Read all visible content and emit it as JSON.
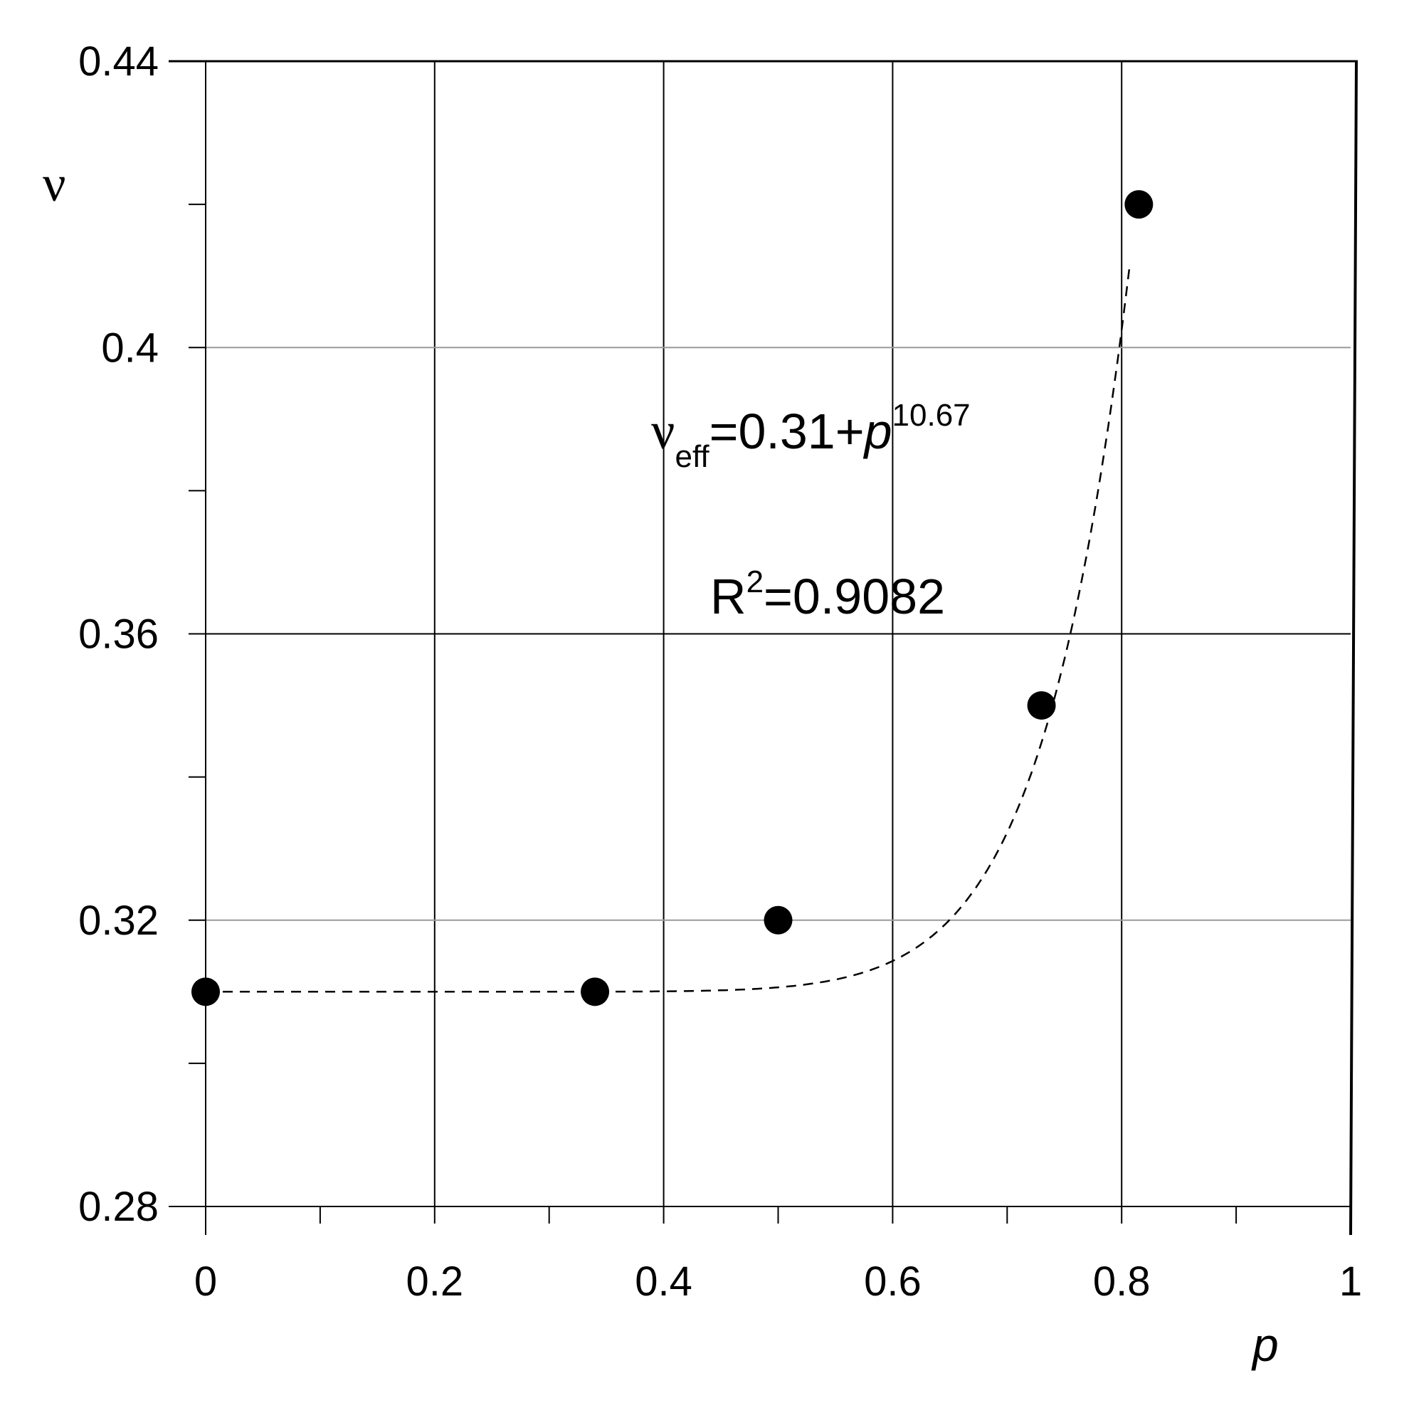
{
  "chart_data": {
    "type": "scatter",
    "xlabel": "p",
    "ylabel": "ν",
    "xlim": [
      0,
      1
    ],
    "ylim": [
      0.28,
      0.44
    ],
    "x_ticks": [
      "0",
      "0.2",
      "0.4",
      "0.6",
      "0.8",
      "1"
    ],
    "y_ticks": [
      "0.28",
      "0.32",
      "0.36",
      "0.4",
      "0.44"
    ],
    "grid": true,
    "series": [
      {
        "marker": "filled-circle",
        "color": "#000000",
        "points": [
          {
            "x": 0.0,
            "y": 0.31
          },
          {
            "x": 0.34,
            "y": 0.31
          },
          {
            "x": 0.5,
            "y": 0.32
          },
          {
            "x": 0.73,
            "y": 0.35
          },
          {
            "x": 0.815,
            "y": 0.42
          }
        ]
      }
    ],
    "fit": {
      "style": "dashed",
      "equation": {
        "symbol": "ν",
        "subscript": "eff",
        "body": "=0.31+",
        "var": "p",
        "exponent": "10.67"
      },
      "r_squared": {
        "prefix": "R",
        "superscript": "2",
        "value": "=0.9082"
      },
      "offset": 0.31,
      "power": 10.67
    }
  }
}
